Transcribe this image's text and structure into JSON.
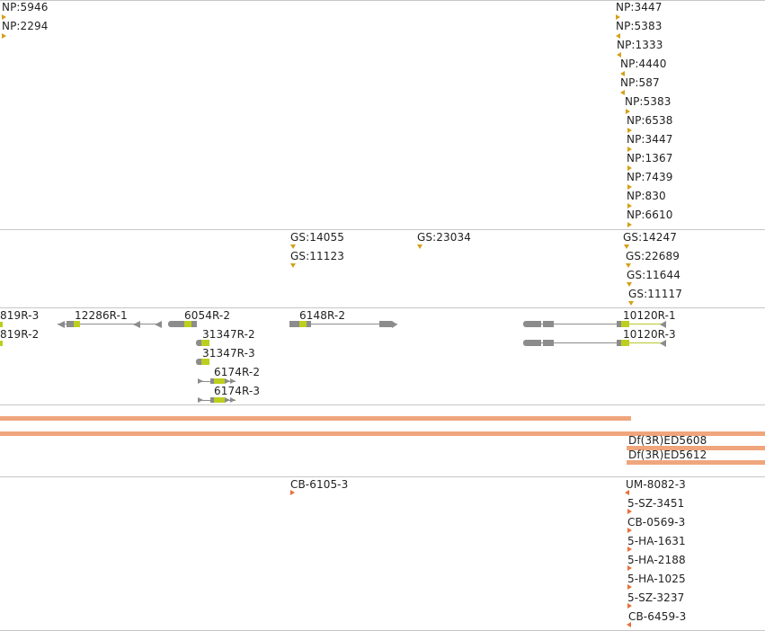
{
  "tracks": {
    "np_sites": {
      "left": [
        "NP:5946",
        "NP:2294"
      ],
      "right": [
        "NP:3447",
        "NP:5383",
        "NP:1333",
        "NP:4440",
        "NP:587",
        "NP:5383",
        "NP:6538",
        "NP:3447",
        "NP:1367",
        "NP:7439",
        "NP:830",
        "NP:6610"
      ]
    },
    "gs_sites": {
      "mid": [
        "GS:14055",
        "GS:11123"
      ],
      "center": [
        "GS:23034"
      ],
      "right": [
        "GS:14247",
        "GS:22689",
        "GS:11644",
        "GS:11117"
      ]
    },
    "transcripts": [
      "819R-3",
      "819R-2",
      "12286R-1",
      "6054R-2",
      "31347R-2",
      "31347R-3",
      "6174R-2",
      "6174R-3",
      "6148R-2",
      "10120R-1",
      "10120R-3"
    ],
    "deficiencies": [
      "Df(3R)ED5608",
      "Df(3R)ED5612"
    ],
    "cb_sites": {
      "mid": [
        "CB-6105-3"
      ],
      "right": [
        "UM-8082-3",
        "5-SZ-3451",
        "CB-0569-3",
        "5-HA-1631",
        "5-HA-2188",
        "5-HA-1025",
        "5-SZ-3237",
        "CB-6459-3"
      ]
    }
  },
  "colors": {
    "np_marker": "#d4a017",
    "cb_marker": "#e8703a",
    "deficiency_bar": "#f0a67d",
    "exon_coding": "#bccf1f",
    "exon_utr": "#8c8c8c"
  }
}
